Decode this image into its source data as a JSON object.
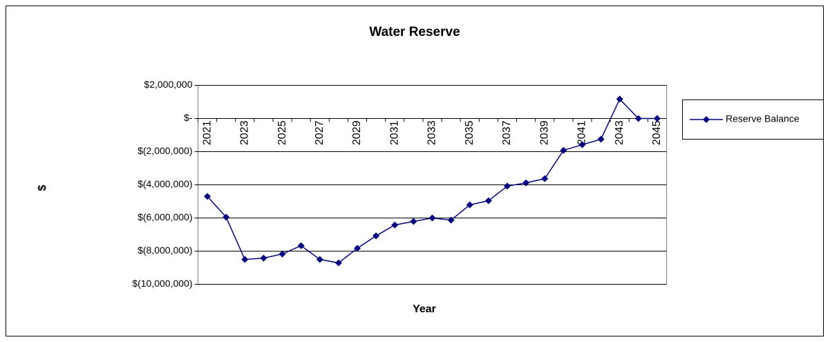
{
  "chart_data": {
    "type": "line",
    "title": "Water Reserve",
    "x_label": "Year",
    "y_label": "$",
    "categories": [
      "2021",
      null,
      "2023",
      null,
      "2025",
      null,
      "2027",
      null,
      "2029",
      null,
      "2031",
      null,
      "2033",
      null,
      "2035",
      null,
      "2037",
      null,
      "2039",
      null,
      "2041",
      null,
      "2043",
      null,
      "2045"
    ],
    "series": [
      {
        "name": "Reserve Balance",
        "color": "#000080",
        "values": [
          -4700000,
          -5950000,
          -8500000,
          -8420000,
          -8170000,
          -7670000,
          -8500000,
          -8710000,
          -7830000,
          -7080000,
          -6420000,
          -6210000,
          -6000000,
          -6130000,
          -5210000,
          -4960000,
          -4080000,
          -3880000,
          -3630000,
          -1920000,
          -1580000,
          -1250000,
          1170000,
          0,
          0
        ]
      }
    ],
    "ylim": [
      -10000000,
      2000000
    ],
    "yticks": [
      {
        "value": -10000000,
        "label": "$(10,000,000)"
      },
      {
        "value": -8000000,
        "label": "$(8,000,000)"
      },
      {
        "value": -6000000,
        "label": "$(6,000,000)"
      },
      {
        "value": -4000000,
        "label": "$(4,000,000)"
      },
      {
        "value": -2000000,
        "label": "$(2,000,000)"
      },
      {
        "value": 0,
        "label": "$-"
      },
      {
        "value": 2000000,
        "label": "$2,000,000"
      }
    ],
    "grid": true,
    "legend": "right"
  }
}
